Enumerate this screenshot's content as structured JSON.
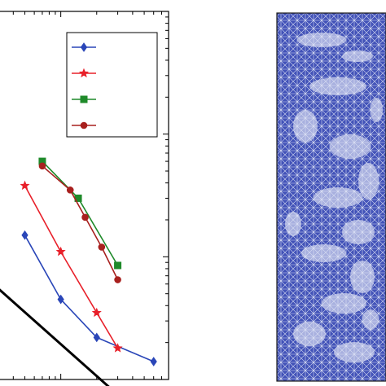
{
  "colors": {
    "series_1": "#2a46b8",
    "series_2": "#e8202a",
    "series_3": "#1f8a2a",
    "series_4": "#a8201e",
    "reference": "#000000",
    "mesh_fill": "#4252b8",
    "mesh_lines": "#e6e9f6",
    "axes": "#000000"
  },
  "legend": {
    "placement": "top-right",
    "markers": [
      "diamond",
      "star",
      "square",
      "circle"
    ]
  },
  "chart_data": [
    {
      "type": "line",
      "xscale": "log",
      "yscale": "log",
      "grid": false,
      "xlabel": "",
      "ylabel": "",
      "title": "",
      "xlim": [
        0.3,
        8
      ],
      "ylim": [
        0.01,
        10
      ],
      "xticks": [
        1,
        3
      ],
      "yticks": [
        0.1,
        1
      ],
      "series": [
        {
          "marker": "diamond",
          "x": [
            0.5,
            1,
            2,
            6
          ],
          "y": [
            0.15,
            0.045,
            0.022,
            0.014
          ]
        },
        {
          "marker": "star",
          "x": [
            0.5,
            1,
            2,
            3
          ],
          "y": [
            0.38,
            0.11,
            0.035,
            0.018
          ]
        },
        {
          "marker": "square",
          "x": [
            0.7,
            1.4,
            3
          ],
          "y": [
            0.6,
            0.3,
            0.085
          ]
        },
        {
          "marker": "circle",
          "x": [
            0.7,
            1.2,
            1.6,
            2.2,
            3
          ],
          "y": [
            0.55,
            0.35,
            0.21,
            0.12,
            0.065
          ]
        },
        {
          "marker": "none",
          "role": "reference-slope",
          "x": [
            0.3,
            3
          ],
          "y": [
            0.055,
            0.0075
          ]
        }
      ]
    },
    {
      "type": "other",
      "kind": "triangular-mesh"
    }
  ]
}
